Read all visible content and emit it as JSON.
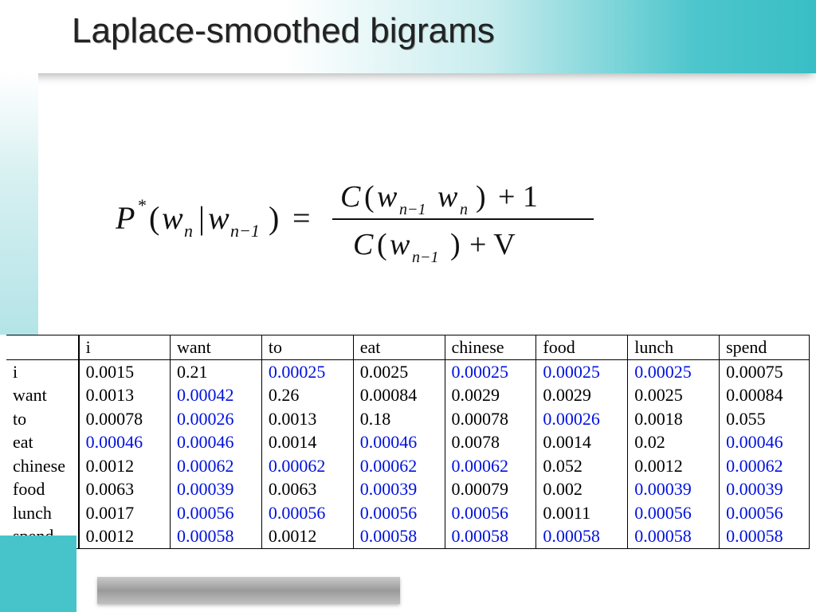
{
  "slide": {
    "title": "Laplace-smoothed bigrams",
    "title_fontsize": 44,
    "title_color": "#222222",
    "header_gradient": [
      "#ffffff",
      "#c8ecee",
      "#4dc6cc",
      "#39bec5"
    ],
    "accent_color": "#47c4ca"
  },
  "formula": {
    "lhs_P": "P",
    "lhs_star": "*",
    "lhs_open": "(",
    "lhs_wn": "w",
    "lhs_n": "n",
    "lhs_bar": "|",
    "lhs_wn1": "w",
    "lhs_n1": "n−1",
    "lhs_close": ")",
    "eq": "=",
    "num_C": "C",
    "num_open": "(",
    "num_wn1_w": "w",
    "num_wn1_s": "n−1",
    "num_wn_w": "w",
    "num_wn_s": "n",
    "num_close": ")",
    "num_plus1": "+ 1",
    "den_C": "C",
    "den_open": "(",
    "den_wn1_w": "w",
    "den_wn1_s": "n−1",
    "den_close": ")",
    "den_plusV": "+ V",
    "font": "Times-Italic",
    "fontsize": 36
  },
  "table": {
    "type": "table",
    "highlight_color": "#0011dd",
    "text_color": "#000000",
    "fontsize": 22,
    "border_color": "#000000",
    "col_widths_pct": [
      9,
      11.4,
      11.4,
      11.4,
      11.4,
      11.4,
      11.4,
      11.4,
      11.2
    ],
    "columns": [
      "",
      "i",
      "want",
      "to",
      "eat",
      "chinese",
      "food",
      "lunch",
      "spend"
    ],
    "rows": [
      {
        "label": "i",
        "cells": [
          {
            "v": "0.0015"
          },
          {
            "v": "0.21"
          },
          {
            "v": "0.00025",
            "h": 1
          },
          {
            "v": "0.0025"
          },
          {
            "v": "0.00025",
            "h": 1
          },
          {
            "v": "0.00025",
            "h": 1
          },
          {
            "v": "0.00025",
            "h": 1
          },
          {
            "v": "0.00075"
          }
        ]
      },
      {
        "label": "want",
        "cells": [
          {
            "v": "0.0013"
          },
          {
            "v": "0.00042",
            "h": 1
          },
          {
            "v": "0.26"
          },
          {
            "v": "0.00084"
          },
          {
            "v": "0.0029"
          },
          {
            "v": "0.0029"
          },
          {
            "v": "0.0025"
          },
          {
            "v": "0.00084"
          }
        ]
      },
      {
        "label": "to",
        "cells": [
          {
            "v": "0.00078"
          },
          {
            "v": "0.00026",
            "h": 1
          },
          {
            "v": "0.0013"
          },
          {
            "v": "0.18"
          },
          {
            "v": "0.00078"
          },
          {
            "v": "0.00026",
            "h": 1
          },
          {
            "v": "0.0018"
          },
          {
            "v": "0.055"
          }
        ]
      },
      {
        "label": "eat",
        "cells": [
          {
            "v": "0.00046",
            "h": 1
          },
          {
            "v": "0.00046",
            "h": 1
          },
          {
            "v": "0.0014"
          },
          {
            "v": "0.00046",
            "h": 1
          },
          {
            "v": "0.0078"
          },
          {
            "v": "0.0014"
          },
          {
            "v": "0.02"
          },
          {
            "v": "0.00046",
            "h": 1
          }
        ]
      },
      {
        "label": "chinese",
        "cells": [
          {
            "v": "0.0012"
          },
          {
            "v": "0.00062",
            "h": 1
          },
          {
            "v": "0.00062",
            "h": 1
          },
          {
            "v": "0.00062",
            "h": 1
          },
          {
            "v": "0.00062",
            "h": 1
          },
          {
            "v": "0.052"
          },
          {
            "v": "0.0012"
          },
          {
            "v": "0.00062",
            "h": 1
          }
        ]
      },
      {
        "label": "food",
        "cells": [
          {
            "v": "0.0063"
          },
          {
            "v": "0.00039",
            "h": 1
          },
          {
            "v": "0.0063"
          },
          {
            "v": "0.00039",
            "h": 1
          },
          {
            "v": "0.00079"
          },
          {
            "v": "0.002"
          },
          {
            "v": "0.00039",
            "h": 1
          },
          {
            "v": "0.00039",
            "h": 1
          }
        ]
      },
      {
        "label": "lunch",
        "cells": [
          {
            "v": "0.0017"
          },
          {
            "v": "0.00056",
            "h": 1
          },
          {
            "v": "0.00056",
            "h": 1
          },
          {
            "v": "0.00056",
            "h": 1
          },
          {
            "v": "0.00056",
            "h": 1
          },
          {
            "v": "0.0011"
          },
          {
            "v": "0.00056",
            "h": 1
          },
          {
            "v": "0.00056",
            "h": 1
          }
        ]
      },
      {
        "label": "spend",
        "cells": [
          {
            "v": "0.0012"
          },
          {
            "v": "0.00058",
            "h": 1
          },
          {
            "v": "0.0012"
          },
          {
            "v": "0.00058",
            "h": 1
          },
          {
            "v": "0.00058",
            "h": 1
          },
          {
            "v": "0.00058",
            "h": 1
          },
          {
            "v": "0.00058",
            "h": 1
          },
          {
            "v": "0.00058",
            "h": 1
          }
        ]
      }
    ]
  },
  "footer": {
    "square_color": "#47c4ca",
    "bar_gradient": [
      "#c9c9c9",
      "#9a9a9a",
      "#c0c0c0"
    ]
  }
}
